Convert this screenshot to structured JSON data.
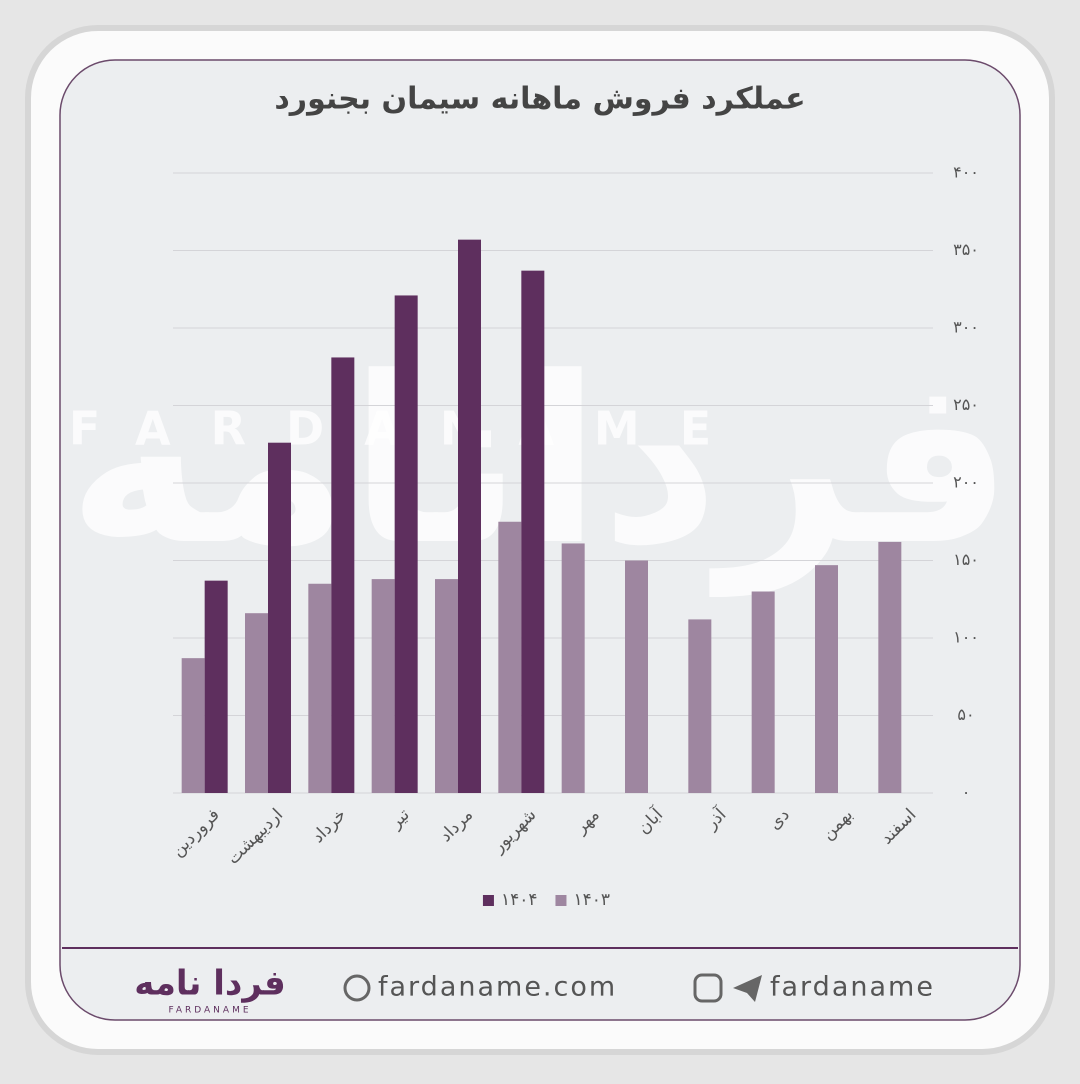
{
  "chart_data": {
    "type": "bar",
    "title": "عملکرد فروش ماهانه سیمان بجنورد",
    "categories": [
      "فروردین",
      "اردیبهشت",
      "خرداد",
      "تیر",
      "مرداد",
      "شهریور",
      "مهر",
      "آبان",
      "آذر",
      "دی",
      "بهمن",
      "اسفند"
    ],
    "series": [
      {
        "name": "۱۴۰۳",
        "color": "#9e86a0",
        "values": [
          87,
          116,
          135,
          138,
          138,
          175,
          161,
          150,
          112,
          130,
          147,
          162
        ]
      },
      {
        "name": "۱۴۰۴",
        "color": "#5e2f5e",
        "values": [
          137,
          226,
          281,
          321,
          357,
          337,
          null,
          null,
          null,
          null,
          null,
          null
        ]
      }
    ],
    "ylim": [
      0,
      400
    ],
    "yticks": [
      {
        "value": 0,
        "label": "۰"
      },
      {
        "value": 50,
        "label": "۵۰"
      },
      {
        "value": 100,
        "label": "۱۰۰"
      },
      {
        "value": 150,
        "label": "۱۵۰"
      },
      {
        "value": 200,
        "label": "۲۰۰"
      },
      {
        "value": 250,
        "label": "۲۵۰"
      },
      {
        "value": 300,
        "label": "۳۰۰"
      },
      {
        "value": 350,
        "label": "۳۵۰"
      },
      {
        "value": 400,
        "label": "۴۰۰"
      }
    ],
    "grid": true,
    "legend": "bottom"
  },
  "watermark": {
    "text": "فردانامه",
    "latin": "FARDANAME"
  },
  "footer": {
    "logo": "فردا نامه",
    "logo_latin": "FARDANAME",
    "website": "fardaname.com",
    "handle": "fardaname"
  }
}
